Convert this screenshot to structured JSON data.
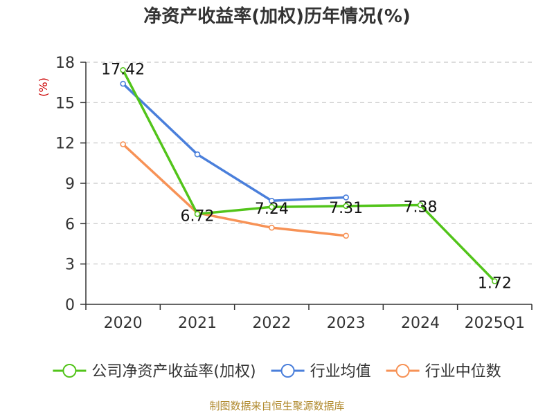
{
  "chart_data": {
    "type": "line",
    "title": "净资产收益率(加权)历年情况(%)",
    "ylabel": "(%)",
    "xlabel": "",
    "categories": [
      "2020",
      "2021",
      "2022",
      "2023",
      "2024",
      "2025Q1"
    ],
    "ylim": [
      0,
      18
    ],
    "yticks": [
      0,
      3,
      6,
      9,
      12,
      15,
      18
    ],
    "grid": "horizontal dashed",
    "legend_position": "bottom",
    "series": [
      {
        "name": "公司净资产收益率(加权)",
        "color": "#52c41a",
        "values": [
          17.42,
          6.72,
          7.24,
          7.31,
          7.38,
          1.72
        ],
        "labels": [
          "17.42",
          "6.72",
          "7.24",
          "7.31",
          "7.38",
          "1.72"
        ]
      },
      {
        "name": "行业均值",
        "color": "#4a7fdb",
        "values": [
          16.4,
          11.15,
          7.7,
          7.95,
          null,
          null
        ]
      },
      {
        "name": "行业中位数",
        "color": "#f79256",
        "values": [
          11.9,
          6.8,
          5.7,
          5.1,
          null,
          null
        ]
      }
    ],
    "source": "制图数据来自恒生聚源数据库"
  }
}
